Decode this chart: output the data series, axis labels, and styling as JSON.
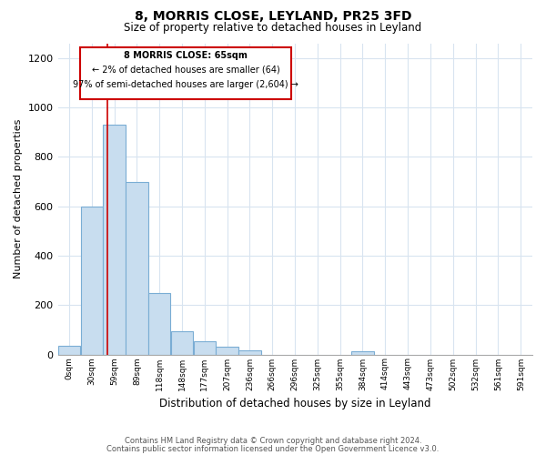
{
  "title": "8, MORRIS CLOSE, LEYLAND, PR25 3FD",
  "subtitle": "Size of property relative to detached houses in Leyland",
  "xlabel": "Distribution of detached houses by size in Leyland",
  "ylabel": "Number of detached properties",
  "bar_color": "#c8ddef",
  "bar_edge_color": "#7aadd4",
  "vline_x": 65,
  "vline_color": "#cc0000",
  "annotation_lines": [
    "8 MORRIS CLOSE: 65sqm",
    "← 2% of detached houses are smaller (64)",
    "97% of semi-detached houses are larger (2,604) →"
  ],
  "bin_edges": [
    0,
    29.5,
    59,
    88.5,
    118,
    147.5,
    177,
    206.5,
    236,
    265.5,
    295,
    324.5,
    354,
    383.5,
    413,
    442.5,
    472,
    501.5,
    531,
    560.5,
    590,
    620
  ],
  "bin_labels": [
    "0sqm",
    "30sqm",
    "59sqm",
    "89sqm",
    "118sqm",
    "148sqm",
    "177sqm",
    "207sqm",
    "236sqm",
    "266sqm",
    "296sqm",
    "325sqm",
    "355sqm",
    "384sqm",
    "414sqm",
    "443sqm",
    "473sqm",
    "502sqm",
    "532sqm",
    "561sqm",
    "591sqm"
  ],
  "bar_heights": [
    35,
    600,
    930,
    700,
    248,
    95,
    55,
    32,
    18,
    0,
    0,
    0,
    0,
    12,
    0,
    0,
    0,
    0,
    0,
    0,
    0
  ],
  "ylim": [
    0,
    1260
  ],
  "yticks": [
    0,
    200,
    400,
    600,
    800,
    1000,
    1200
  ],
  "footer_lines": [
    "Contains HM Land Registry data © Crown copyright and database right 2024.",
    "Contains public sector information licensed under the Open Government Licence v3.0."
  ],
  "background_color": "#ffffff",
  "grid_color": "#d8e4f0"
}
